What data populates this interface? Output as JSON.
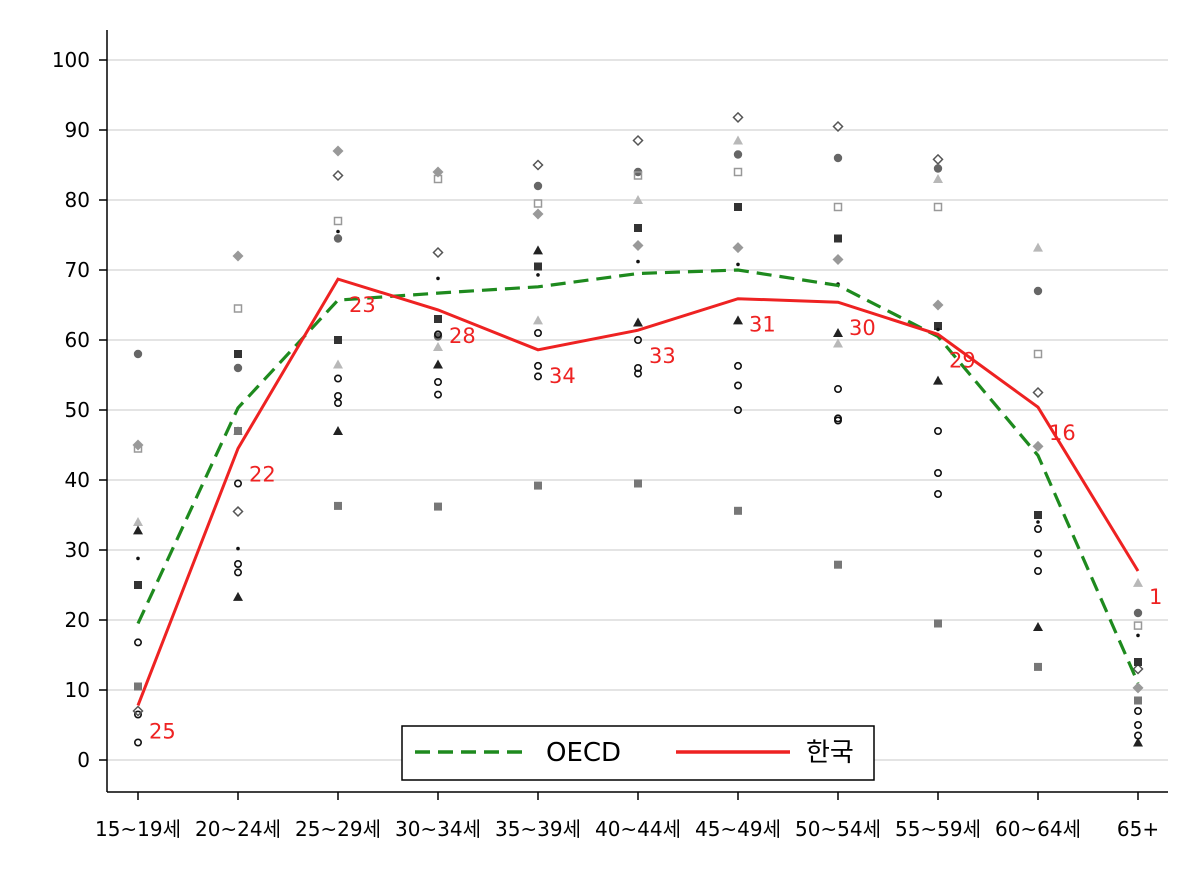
{
  "chart_data": {
    "type": "line",
    "categories": [
      "15~19세",
      "20~24세",
      "25~29세",
      "30~34세",
      "35~39세",
      "40~44세",
      "45~49세",
      "50~54세",
      "55~59세",
      "60~64세",
      "65+"
    ],
    "ylim": [
      0,
      100
    ],
    "yticks": [
      0,
      10,
      20,
      30,
      40,
      50,
      60,
      70,
      80,
      90,
      100
    ],
    "grid": true,
    "legend_position": "bottom-center",
    "colors": {
      "oecd": "#1e8a1e",
      "korea": "#ee2222",
      "rank": "#ee2222",
      "grid": "#dcdcdc",
      "axis": "#000000"
    },
    "series": [
      {
        "name": "OECD",
        "style": "dashed",
        "values": [
          19.5,
          50.3,
          65.7,
          66.7,
          67.6,
          69.5,
          70.0,
          67.8,
          60.5,
          43.5,
          11.0
        ]
      },
      {
        "name": "한국",
        "style": "solid",
        "values": [
          7.8,
          44.5,
          68.7,
          64.3,
          58.6,
          61.4,
          65.9,
          65.4,
          60.8,
          50.4,
          27.0
        ]
      }
    ],
    "korea_rank_labels": [
      "25",
      "22",
      "23",
      "28",
      "34",
      "33",
      "31",
      "30",
      "29",
      "16",
      "1"
    ],
    "country_points": [
      {
        "name": "series-a",
        "marker": "circle-filled",
        "color": "#666666",
        "values": [
          58.0,
          56.0,
          74.5,
          60.5,
          82.0,
          84.0,
          86.5,
          86.0,
          84.5,
          67.0,
          21.0
        ]
      },
      {
        "name": "series-b",
        "marker": "triangle-filled",
        "color": "#b8b8b8",
        "values": [
          34.0,
          47.0,
          56.5,
          59.0,
          62.8,
          80.0,
          88.5,
          59.5,
          83.0,
          73.2,
          25.3
        ]
      },
      {
        "name": "series-c",
        "marker": "circle-open",
        "color": "#111111",
        "values": [
          16.8,
          39.5,
          54.5,
          54.0,
          56.3,
          56.0,
          56.3,
          53.0,
          47.0,
          29.5,
          7.0
        ]
      },
      {
        "name": "series-d",
        "marker": "circle-open",
        "color": "#111111",
        "values": [
          6.5,
          28.0,
          52.0,
          52.2,
          54.8,
          55.2,
          53.5,
          48.5,
          41.0,
          27.0,
          5.0
        ]
      },
      {
        "name": "series-e",
        "marker": "circle-open",
        "color": "#111111",
        "values": [
          2.5,
          26.8,
          51.0,
          60.8,
          61.0,
          60.0,
          50.0,
          48.8,
          38.0,
          33.0,
          3.5
        ]
      },
      {
        "name": "series-f",
        "marker": "square-filled",
        "color": "#777777",
        "values": [
          10.5,
          47.0,
          36.3,
          36.2,
          39.2,
          39.5,
          35.6,
          27.9,
          19.5,
          13.3,
          8.5
        ]
      },
      {
        "name": "series-g",
        "marker": "square-open",
        "color": "#999999",
        "values": [
          44.5,
          64.5,
          77.0,
          83.0,
          79.5,
          83.5,
          84.0,
          79.0,
          79.0,
          58.0,
          19.2
        ]
      },
      {
        "name": "series-h",
        "marker": "diamond-filled",
        "color": "#999999",
        "values": [
          45.0,
          72.0,
          87.0,
          84.0,
          78.0,
          73.5,
          73.2,
          71.5,
          65.0,
          44.8,
          10.3
        ]
      },
      {
        "name": "series-i",
        "marker": "diamond-open",
        "color": "#555555",
        "values": [
          7.0,
          35.5,
          83.5,
          72.5,
          85.0,
          88.5,
          91.8,
          90.5,
          85.8,
          52.5,
          13.0
        ]
      },
      {
        "name": "series-j",
        "marker": "triangle-filled",
        "color": "#222222",
        "values": [
          32.8,
          23.3,
          47.0,
          56.5,
          72.8,
          62.5,
          62.8,
          61.0,
          54.2,
          19.0,
          2.5
        ]
      },
      {
        "name": "series-k",
        "marker": "square-filled",
        "color": "#333333",
        "values": [
          25.0,
          58.0,
          60.0,
          63.0,
          70.5,
          76.0,
          79.0,
          74.5,
          62.0,
          35.0,
          14.0
        ]
      },
      {
        "name": "series-l",
        "marker": "dot-small",
        "color": "#111111",
        "values": [
          28.8,
          30.2,
          75.5,
          68.8,
          69.3,
          71.2,
          70.8,
          68.0,
          61.5,
          34.0,
          17.8
        ]
      }
    ]
  }
}
